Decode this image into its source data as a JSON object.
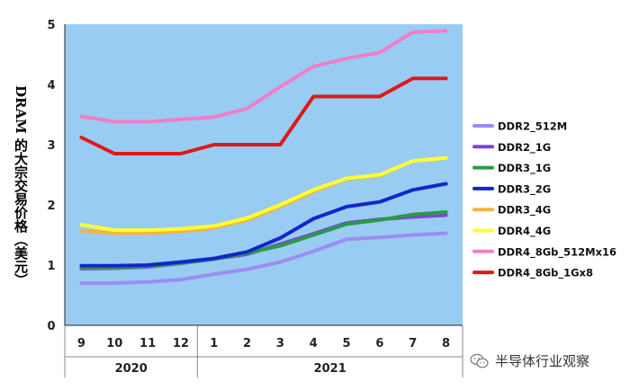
{
  "chart_data": {
    "type": "line",
    "ylabel": "DRAM 的大宗交易价格（美元）",
    "ylim": [
      0,
      5
    ],
    "yticks": [
      "0",
      "1",
      "2",
      "3",
      "4",
      "5"
    ],
    "categories": [
      "9",
      "10",
      "11",
      "12",
      "1",
      "2",
      "3",
      "4",
      "5",
      "6",
      "7",
      "8"
    ],
    "year_groups": [
      {
        "label": "2020",
        "span": [
          0,
          3
        ]
      },
      {
        "label": "2021",
        "span": [
          4,
          11
        ]
      }
    ],
    "legend_position": "right",
    "grid": false,
    "plot_background": "#99ccf2",
    "series": [
      {
        "name": "DDR2_512M",
        "color": "#9b8cf2",
        "values": [
          0.7,
          0.7,
          0.72,
          0.76,
          0.85,
          0.93,
          1.05,
          1.23,
          1.43,
          1.46,
          1.5,
          1.53
        ]
      },
      {
        "name": "DDR2_1G",
        "color": "#7b46d9",
        "values": [
          0.94,
          0.95,
          0.97,
          1.03,
          1.1,
          1.18,
          1.35,
          1.52,
          1.7,
          1.76,
          1.8,
          1.83
        ]
      },
      {
        "name": "DDR3_1G",
        "color": "#2a9a4a",
        "values": [
          0.96,
          0.96,
          0.98,
          1.03,
          1.1,
          1.2,
          1.32,
          1.5,
          1.68,
          1.75,
          1.84,
          1.88
        ]
      },
      {
        "name": "DDR3_2G",
        "color": "#1226c9",
        "values": [
          0.99,
          0.99,
          1.0,
          1.05,
          1.11,
          1.22,
          1.45,
          1.77,
          1.97,
          2.05,
          2.25,
          2.35
        ]
      },
      {
        "name": "DDR3_4G",
        "color": "#f4b43c",
        "values": [
          1.57,
          1.53,
          1.53,
          1.56,
          1.62,
          1.75,
          1.97,
          2.22,
          2.43,
          2.49,
          2.73,
          2.78
        ]
      },
      {
        "name": "DDR4_4G",
        "color": "#ffff33",
        "values": [
          1.67,
          1.58,
          1.58,
          1.6,
          1.65,
          1.78,
          2.0,
          2.25,
          2.44,
          2.5,
          2.73,
          2.78
        ]
      },
      {
        "name": "DDR4_8Gb_512Mx16",
        "color": "#f07ec8",
        "values": [
          3.47,
          3.38,
          3.38,
          3.42,
          3.46,
          3.6,
          3.96,
          4.3,
          4.43,
          4.53,
          4.87,
          4.89
        ]
      },
      {
        "name": "DDR4_8Gb_1Gx8",
        "color": "#e0181b",
        "values": [
          3.12,
          2.85,
          2.85,
          2.85,
          3.0,
          3.0,
          3.0,
          3.8,
          3.8,
          3.8,
          4.1,
          4.1
        ]
      }
    ]
  },
  "watermark": {
    "text": "半导体行业观察",
    "icon": "wechat-icon"
  }
}
